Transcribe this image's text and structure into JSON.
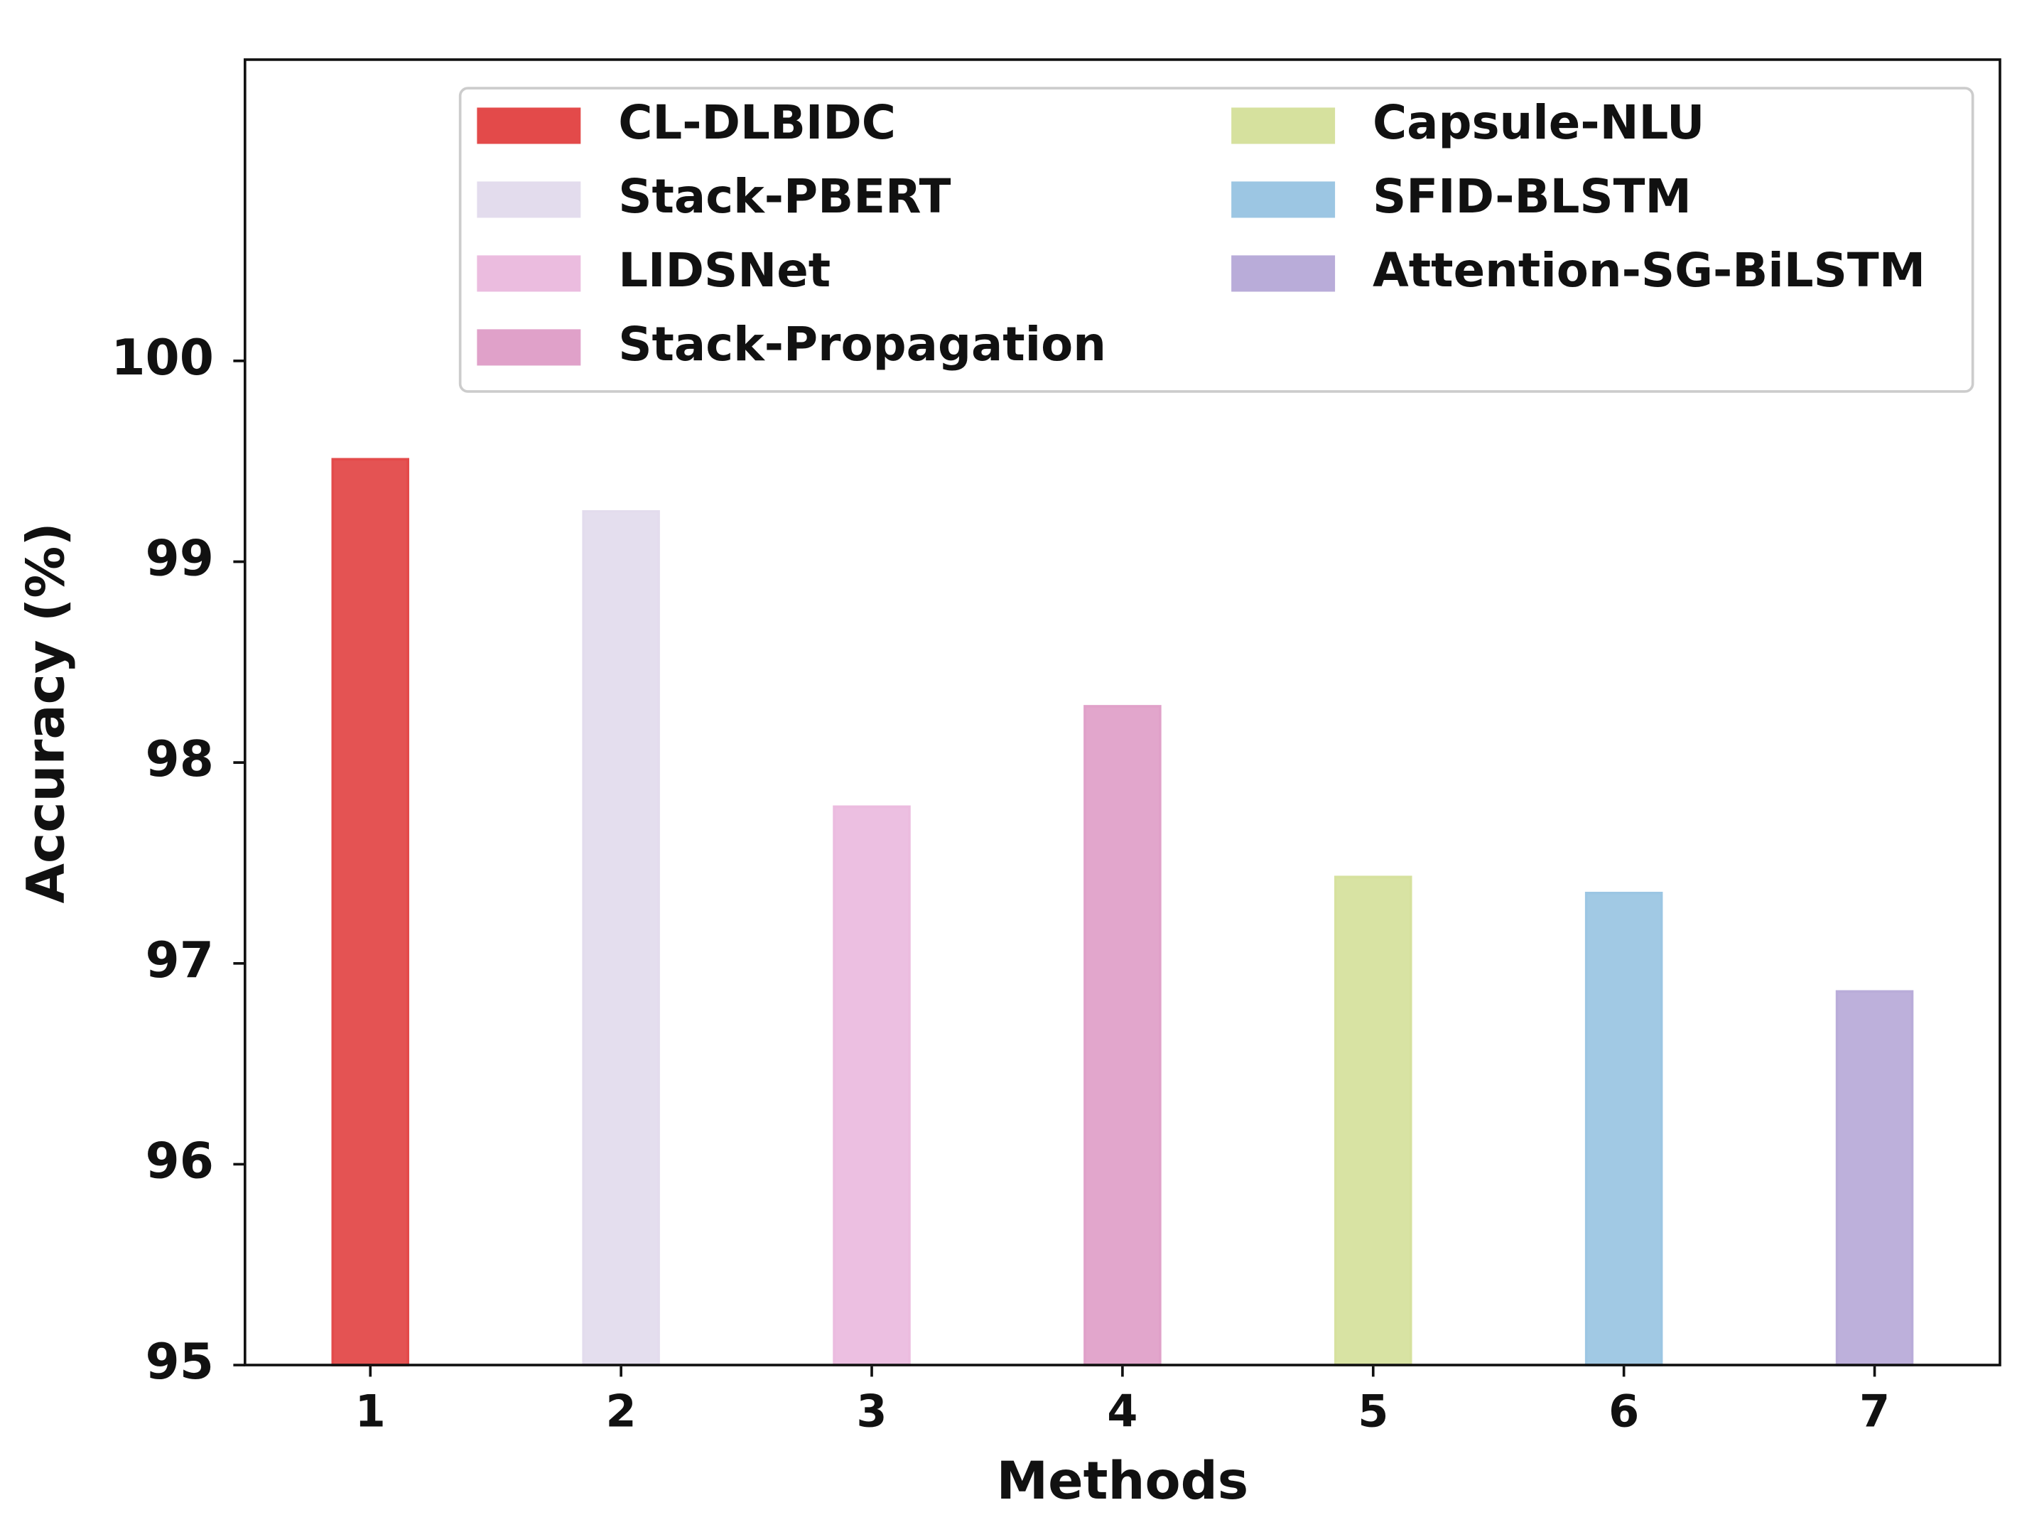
{
  "chart_data": {
    "type": "bar",
    "x_label": "Methods",
    "y_label": "Accuracy (%)",
    "categories": [
      "1",
      "2",
      "3",
      "4",
      "5",
      "6",
      "7"
    ],
    "series": [
      {
        "name": "CL-DLBIDC",
        "color": "#e34a4a",
        "values": [
          99.51,
          null,
          null,
          null,
          null,
          null,
          null
        ]
      },
      {
        "name": "Stack-PBERT",
        "color": "#e3dced",
        "values": [
          null,
          99.25,
          null,
          null,
          null,
          null,
          null
        ]
      },
      {
        "name": "LIDSNet",
        "color": "#ebbcdf",
        "values": [
          null,
          null,
          97.78,
          null,
          null,
          null,
          null
        ]
      },
      {
        "name": "Stack-Propagation",
        "color": "#e0a1c9",
        "values": [
          null,
          null,
          null,
          98.28,
          null,
          null,
          null
        ]
      },
      {
        "name": "Capsule-NLU",
        "color": "#d6e19e",
        "values": [
          null,
          null,
          null,
          null,
          97.43,
          null,
          null
        ]
      },
      {
        "name": "SFID-BLSTM",
        "color": "#9cc6e3",
        "values": [
          null,
          null,
          null,
          null,
          null,
          97.35,
          null
        ]
      },
      {
        "name": "Attention-SG-BiLSTM",
        "color": "#b9acd9",
        "values": [
          null,
          null,
          null,
          null,
          null,
          null,
          96.86
        ]
      }
    ],
    "ylim": [
      95,
      101.5
    ],
    "yticks": [
      95,
      96,
      97,
      98,
      99,
      100
    ],
    "legend": "upper right",
    "legend_columns": 2
  }
}
